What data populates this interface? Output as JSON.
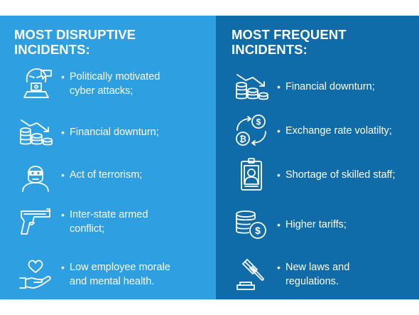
{
  "left": {
    "heading_line1": "MOST DISRUPTIVE",
    "heading_line2": "INCIDENTS:",
    "items": [
      {
        "icon": "hacker-icon",
        "bullet": "•",
        "line1": "Politically motivated",
        "line2": "cyber attacks;"
      },
      {
        "icon": "coins-down-icon",
        "bullet": "•",
        "line1": "Financial downturn;",
        "line2": ""
      },
      {
        "icon": "masked-person-icon",
        "bullet": "•",
        "line1": "Act of terrorism;",
        "line2": ""
      },
      {
        "icon": "gun-icon",
        "bullet": "•",
        "line1": "Inter-state armed",
        "line2": "conflict;"
      },
      {
        "icon": "heart-hand-icon",
        "bullet": "•",
        "line1": "Low employee morale",
        "line2": "and mental health."
      }
    ]
  },
  "right": {
    "heading_line1": "MOST FREQUENT",
    "heading_line2": "INCIDENTS:",
    "items": [
      {
        "icon": "coins-down-icon",
        "bullet": "•",
        "line1": "Financial downturn;",
        "line2": ""
      },
      {
        "icon": "currency-exchange-icon",
        "bullet": "•",
        "line1": "Exchange rate volatilty;",
        "line2": ""
      },
      {
        "icon": "id-badge-icon",
        "bullet": "•",
        "line1": "Shortage of skilled staff;",
        "line2": ""
      },
      {
        "icon": "coin-stack-dollar-icon",
        "bullet": "•",
        "line1": "Higher tariffs;",
        "line2": ""
      },
      {
        "icon": "gavel-icon",
        "bullet": "•",
        "line1": "New laws and",
        "line2": "regulations."
      }
    ]
  },
  "colors": {
    "left_panel": "#2e9fe1",
    "right_panel": "#0f6ca8",
    "text": "#ffffff"
  }
}
